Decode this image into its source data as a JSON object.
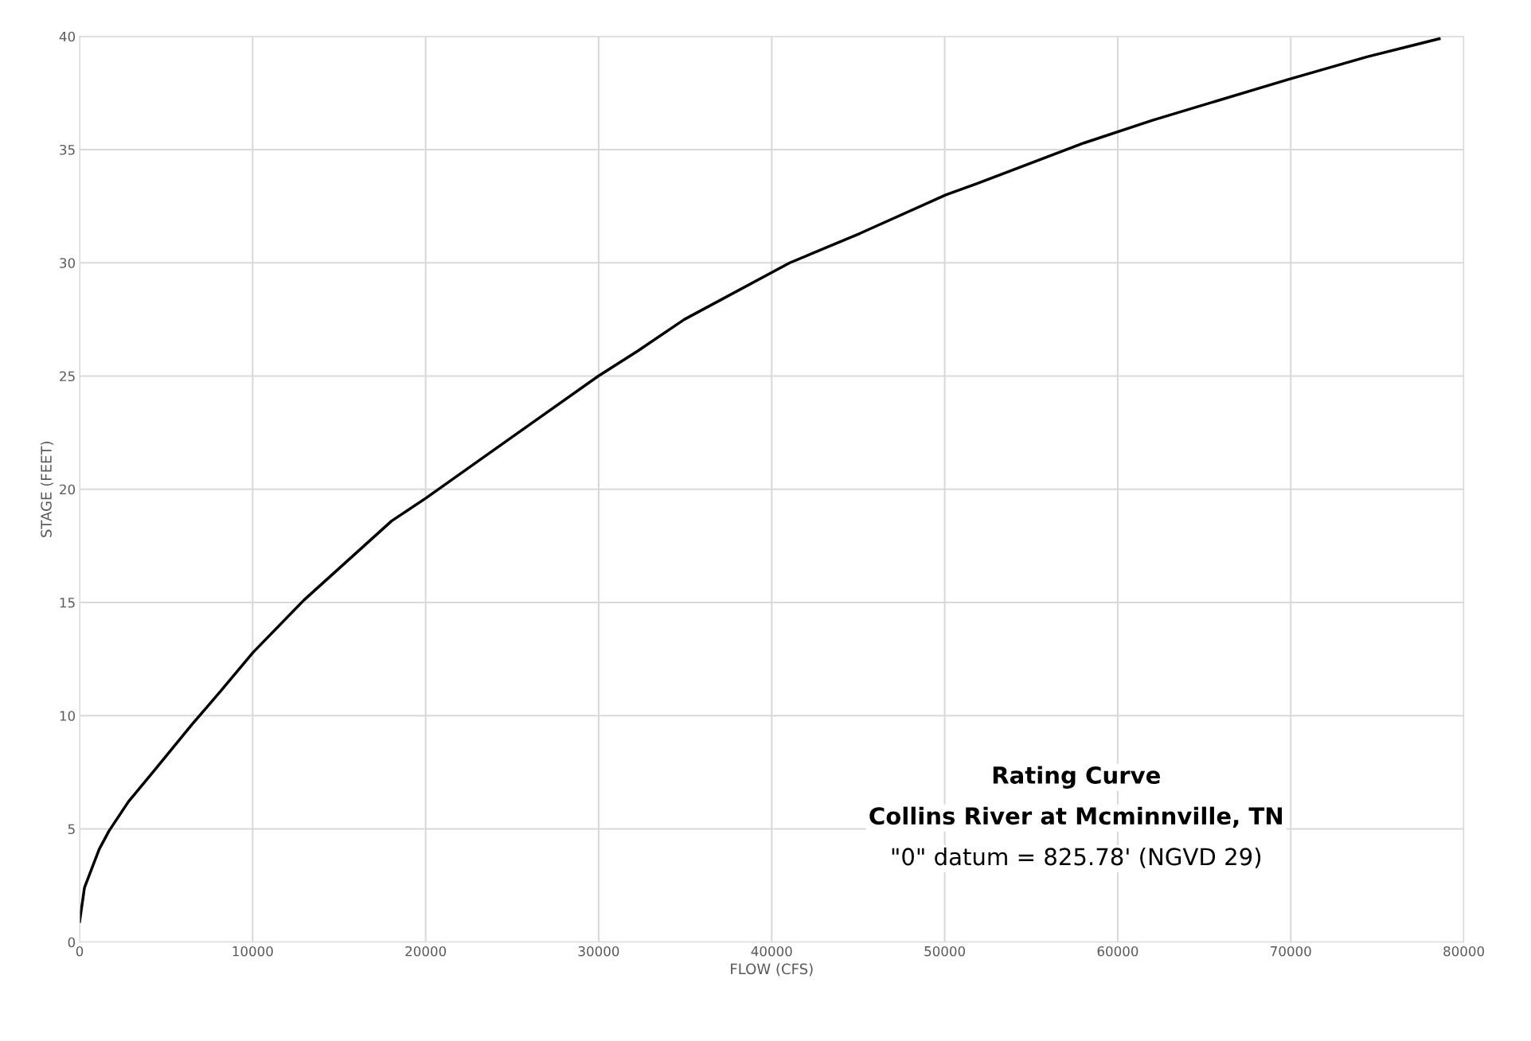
{
  "chart_data": {
    "type": "line",
    "title": "Rating Curve",
    "subtitle": "Collins River at Mcminnville, TN",
    "annotations": [
      "\"0\" datum = 825.78' (NGVD 29)"
    ],
    "xlabel": "FLOW (CFS)",
    "ylabel": "STAGE (FEET)",
    "x": [
      0,
      280,
      1130,
      1690,
      2820,
      4230,
      6480,
      8170,
      10030,
      12960,
      18030,
      20000,
      24800,
      29980,
      32240,
      34950,
      41040,
      45100,
      50060,
      51870,
      58070,
      62010,
      69850,
      74410,
      78580
    ],
    "series": [
      {
        "color": "#000000",
        "values": [
          0.9,
          2.4,
          4.1,
          4.9,
          6.2,
          7.5,
          9.6,
          11.1,
          12.8,
          15.1,
          18.6,
          19.6,
          22.2,
          25.0,
          26.1,
          27.5,
          30.0,
          31.3,
          33.0,
          33.5,
          35.3,
          36.3,
          38.1,
          39.1,
          39.9
        ]
      }
    ],
    "xlim": [
      0,
      80000
    ],
    "ylim": [
      0,
      40
    ],
    "xticks": [
      0,
      10000,
      20000,
      30000,
      40000,
      50000,
      60000,
      70000,
      80000
    ],
    "yticks": [
      0,
      5,
      10,
      15,
      20,
      25,
      30,
      35,
      40
    ],
    "grid": true,
    "marker": "none",
    "line_style": "solid"
  }
}
